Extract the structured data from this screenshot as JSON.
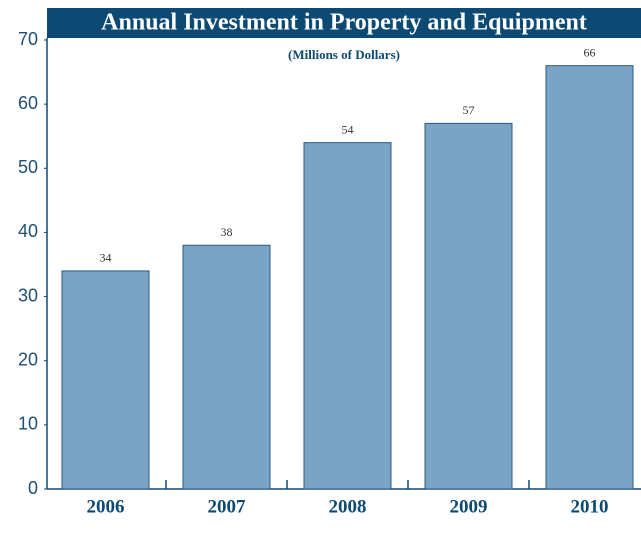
{
  "chart_data": {
    "type": "bar",
    "title": "Annual Investment in Property and Equipment",
    "subtitle": "(Millions of Dollars)",
    "categories": [
      "2006",
      "2007",
      "2008",
      "2009",
      "2010"
    ],
    "values": [
      34,
      38,
      54,
      57,
      66
    ],
    "color": "#7aa4c6",
    "ylim": [
      0,
      70
    ],
    "yticks": [
      0,
      10,
      20,
      30,
      40,
      50,
      60,
      70
    ],
    "grid": false
  }
}
